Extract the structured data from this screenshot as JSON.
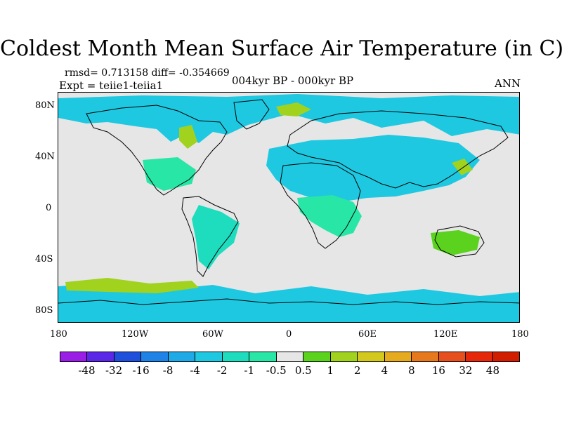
{
  "title": "Coldest Month Mean Surface Air Temperature (in C)",
  "stats": "rmsd= 0.713158 diff= -0.354669",
  "experiment": "Expt = teiie1-teiia1",
  "period": "004kyr BP - 000kyr BP",
  "season": "ANN",
  "axes": {
    "lat_labels": [
      "80N",
      "40N",
      "0",
      "40S",
      "80S"
    ],
    "lat_values": [
      80,
      40,
      0,
      -40,
      -80
    ],
    "lon_labels": [
      "180",
      "120W",
      "60W",
      "0",
      "60E",
      "120E",
      "180"
    ],
    "lon_values": [
      -180,
      -120,
      -60,
      0,
      60,
      120,
      180
    ],
    "lon_range": [
      -180,
      180
    ],
    "lat_range": [
      -90,
      90
    ]
  },
  "colorbar": {
    "labels": [
      "-48",
      "-32",
      "-16",
      "-8",
      "-4",
      "-2",
      "-1",
      "-0.5",
      "0.5",
      "1",
      "2",
      "4",
      "8",
      "16",
      "32",
      "48"
    ],
    "colors": [
      "#9a1ee6",
      "#5a28e6",
      "#1e50dc",
      "#1e82e6",
      "#1eaae6",
      "#1ec8e1",
      "#1edcbe",
      "#28e6a5",
      "#e6e6e6",
      "#5ad21e",
      "#a0d21e",
      "#d2c81e",
      "#e6aa1e",
      "#e6781e",
      "#e6501e",
      "#e6280a",
      "#d21e00"
    ]
  },
  "map_colors": {
    "background": "#e6e6e6",
    "cool_weak": "#28e6a5",
    "cool": "#1edcbe",
    "cool_strong": "#1ec8e1",
    "warm_weak": "#5ad21e",
    "warm": "#a0d21e",
    "coastline": "#000000"
  }
}
